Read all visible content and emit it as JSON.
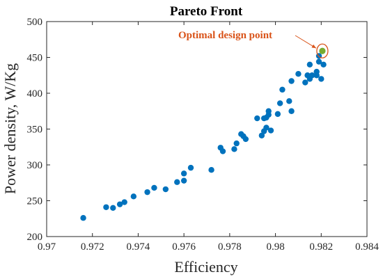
{
  "chart_data": {
    "type": "scatter",
    "title": "Pareto Front",
    "xlabel": "Efficiency",
    "ylabel": "Power density, W/Kg",
    "xlim": [
      0.97,
      0.984
    ],
    "ylim": [
      200,
      500
    ],
    "xticks": [
      "0.97",
      "0.972",
      "0.974",
      "0.976",
      "0.978",
      "0.98",
      "0.982",
      "0.984"
    ],
    "yticks": [
      "200",
      "250",
      "300",
      "350",
      "400",
      "450",
      "500"
    ],
    "grid": false,
    "box": true,
    "series": [
      {
        "color": "#0072BD",
        "points": [
          [
            0.9716,
            226
          ],
          [
            0.9726,
            241
          ],
          [
            0.9729,
            240
          ],
          [
            0.9732,
            245
          ],
          [
            0.9734,
            248
          ],
          [
            0.9738,
            256
          ],
          [
            0.9744,
            262
          ],
          [
            0.9747,
            268
          ],
          [
            0.9752,
            266
          ],
          [
            0.9757,
            276
          ],
          [
            0.976,
            288
          ],
          [
            0.976,
            278
          ],
          [
            0.9763,
            296
          ],
          [
            0.9772,
            293
          ],
          [
            0.9776,
            324
          ],
          [
            0.9777,
            319
          ],
          [
            0.9782,
            322
          ],
          [
            0.9783,
            330
          ],
          [
            0.9785,
            343
          ],
          [
            0.9786,
            340
          ],
          [
            0.9787,
            336
          ],
          [
            0.9792,
            365
          ],
          [
            0.9794,
            341
          ],
          [
            0.9795,
            365
          ],
          [
            0.9795,
            347
          ],
          [
            0.9796,
            352
          ],
          [
            0.9796,
            366
          ],
          [
            0.9797,
            370
          ],
          [
            0.9797,
            375
          ],
          [
            0.9798,
            348
          ],
          [
            0.9801,
            371
          ],
          [
            0.9802,
            386
          ],
          [
            0.9803,
            405
          ],
          [
            0.9806,
            389
          ],
          [
            0.9807,
            417
          ],
          [
            0.9807,
            375
          ],
          [
            0.981,
            427
          ],
          [
            0.9813,
            415
          ],
          [
            0.9814,
            425
          ],
          [
            0.9815,
            420
          ],
          [
            0.9815,
            440
          ],
          [
            0.9816,
            425
          ],
          [
            0.9818,
            430
          ],
          [
            0.9818,
            425
          ],
          [
            0.9819,
            444
          ],
          [
            0.982,
            420
          ],
          [
            0.9821,
            440
          ],
          [
            0.9819,
            452
          ]
        ]
      }
    ],
    "highlight": {
      "label": "Optimal design point",
      "x": 0.98205,
      "y": 459,
      "marker_color": "#77AC30",
      "ring_color": "#D95319",
      "text_color": "#D95319"
    }
  }
}
